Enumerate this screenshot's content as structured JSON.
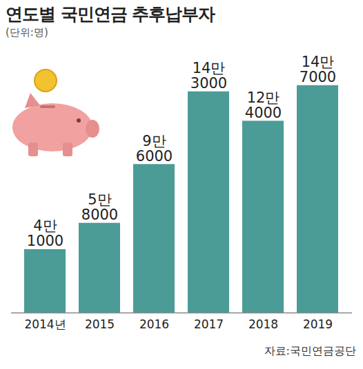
{
  "chart_data": {
    "type": "bar",
    "title": "연도별 국민연금 추후납부자",
    "subtitle": "(단위:명)",
    "source": "자료:국민연금공단",
    "categories": [
      "2014년",
      "2015",
      "2016",
      "2017",
      "2018",
      "2019"
    ],
    "values": [
      41000,
      58000,
      96000,
      143000,
      124000,
      147000
    ],
    "value_labels": [
      "4만\n1000",
      "5만\n8000",
      "9만\n6000",
      "14만\n3000",
      "12만\n4000",
      "14만\n7000"
    ],
    "color": "#4b9b97",
    "ylim": [
      0,
      150000
    ],
    "data_labels": true,
    "tick_labels": "x",
    "grid": false
  }
}
